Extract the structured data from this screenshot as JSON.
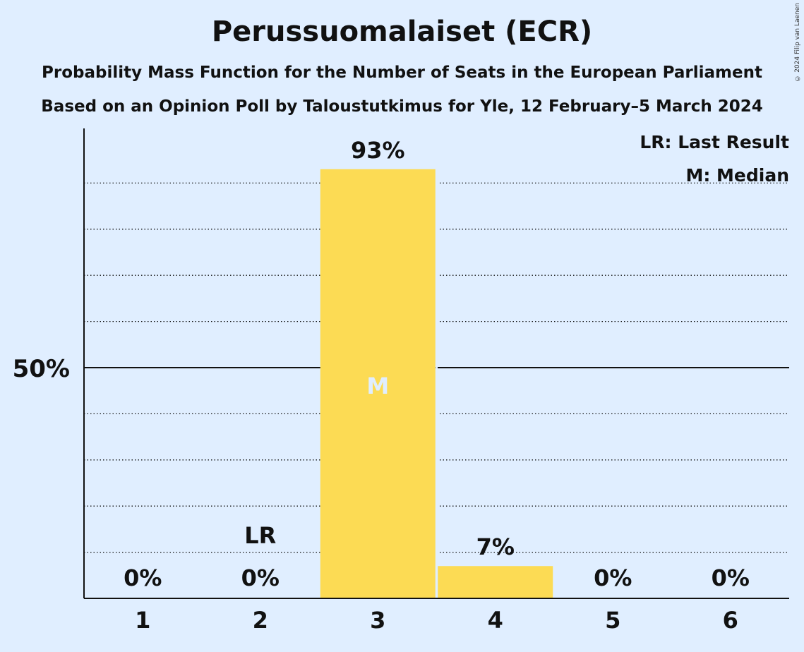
{
  "header": {
    "title": "Perussuomalaiset (ECR)",
    "subtitle": "Probability Mass Function for the Number of Seats in the European Parliament",
    "subtitle2": "Based on an Opinion Poll by Taloustutkimus for Yle, 12 February–5 March 2024",
    "copyright": "© 2024 Filip van Laenen"
  },
  "legend": {
    "last_result": "LR: Last Result",
    "median": "M: Median"
  },
  "colors": {
    "background": "#e0eeff",
    "bar": "#fcdb54",
    "median_text": "#e0eeff"
  },
  "chart_data": {
    "type": "bar",
    "categories": [
      "1",
      "2",
      "3",
      "4",
      "5",
      "6"
    ],
    "values": [
      0,
      0,
      93,
      7,
      0,
      0
    ],
    "value_labels": [
      "0%",
      "0%",
      "93%",
      "7%",
      "0%",
      "0%"
    ],
    "ylim": [
      0,
      100
    ],
    "yticks": [
      {
        "value": 50,
        "label": "50%"
      }
    ],
    "gridlines": [
      10,
      20,
      30,
      40,
      60,
      70,
      80,
      90
    ],
    "last_result": {
      "category": "2",
      "label": "LR"
    },
    "median": {
      "category": "3",
      "label": "M"
    },
    "legend_position": "top-right"
  }
}
